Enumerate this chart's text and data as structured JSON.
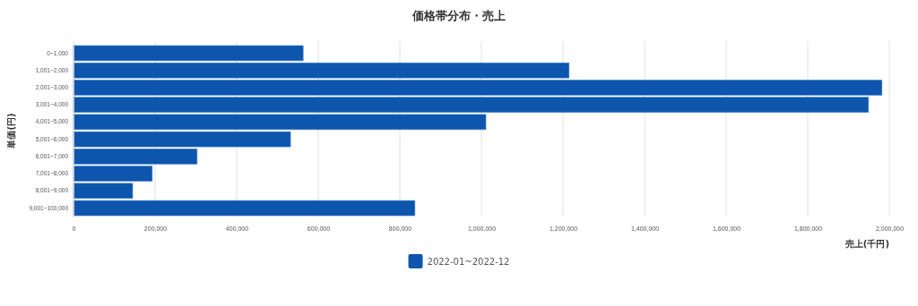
{
  "chart_data": {
    "type": "bar",
    "orientation": "horizontal",
    "title": "価格帯分布・売上",
    "xlabel": "売上(千円)",
    "ylabel": "単価(円)",
    "categories": [
      "0~1,000",
      "1,001~2,000",
      "2,001~3,000",
      "3,001~4,000",
      "4,001~5,000",
      "5,001~6,000",
      "6,001~7,000",
      "7,001~8,000",
      "8,001~9,000",
      "9,001~100,000"
    ],
    "series": [
      {
        "name": "2022-01~2022-12",
        "color": "#0d55ad",
        "values": [
          563000,
          1215000,
          1982000,
          1949000,
          1011000,
          532000,
          303000,
          193000,
          145000,
          837000
        ]
      }
    ],
    "xlim": [
      0,
      2000000
    ],
    "xticks": [
      {
        "value": 0,
        "label": "0"
      },
      {
        "value": 200000,
        "label": "200,000"
      },
      {
        "value": 400000,
        "label": "400,000"
      },
      {
        "value": 600000,
        "label": "600,000"
      },
      {
        "value": 800000,
        "label": "800,000"
      },
      {
        "value": 1000000,
        "label": "1,000,000"
      },
      {
        "value": 1200000,
        "label": "1,200,000"
      },
      {
        "value": 1400000,
        "label": "1,400,000"
      },
      {
        "value": 1600000,
        "label": "1,600,000"
      },
      {
        "value": 1800000,
        "label": "1,800,000"
      },
      {
        "value": 2000000,
        "label": "2,000,000"
      }
    ],
    "grid": "x",
    "legend": "bottom"
  }
}
